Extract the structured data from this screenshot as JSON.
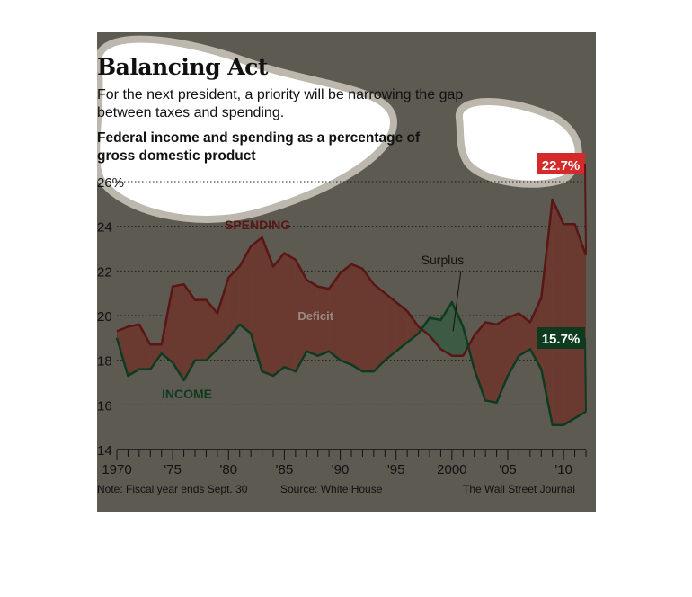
{
  "title": "Balancing Act",
  "subtitle": "For the next president, a priority will be narrowing the gap between taxes and spending.",
  "chart_heading": "Federal income and spending as a percentage of gross domestic product",
  "note": "Note: Fiscal year ends Sept. 30",
  "source": "Source: White House",
  "publisher": "The Wall Street Journal",
  "colors": {
    "background": "#5d5a52",
    "spending": "#5a1515",
    "income": "#0e3a20",
    "deficit_fill": "#6a3a30",
    "surplus_fill": "#3d5a45",
    "spending_badge": "#d42a2a",
    "income_badge": "#0e3a1e"
  },
  "chart_data": {
    "type": "line",
    "title": "Federal income and spending as a percentage of gross domestic product",
    "xlim": [
      1970,
      2012
    ],
    "ylim": [
      14,
      26
    ],
    "y_ticks": [
      14,
      16,
      18,
      20,
      22,
      24,
      26
    ],
    "y_tick_labels": [
      "14",
      "16",
      "18",
      "20",
      "22",
      "24",
      "26%"
    ],
    "x_ticks": [
      1970,
      1975,
      1980,
      1985,
      1990,
      1995,
      2000,
      2005,
      2010
    ],
    "x_tick_labels": [
      "1970",
      "'75",
      "'80",
      "'85",
      "'90",
      "'95",
      "2000",
      "'05",
      "'10"
    ],
    "grid": "horizontal dotted",
    "series": [
      {
        "name": "SPENDING",
        "x": [
          1970,
          1971,
          1972,
          1973,
          1974,
          1975,
          1976,
          1977,
          1978,
          1979,
          1980,
          1981,
          1982,
          1983,
          1984,
          1985,
          1986,
          1987,
          1988,
          1989,
          1990,
          1991,
          1992,
          1993,
          1994,
          1995,
          1996,
          1997,
          1998,
          1999,
          2000,
          2001,
          2002,
          2003,
          2004,
          2005,
          2006,
          2007,
          2008,
          2009,
          2010,
          2011,
          2012
        ],
        "values": [
          19.3,
          19.5,
          19.6,
          18.7,
          18.7,
          21.3,
          21.4,
          20.7,
          20.7,
          20.1,
          21.7,
          22.2,
          23.1,
          23.5,
          22.2,
          22.8,
          22.5,
          21.6,
          21.3,
          21.2,
          21.9,
          22.3,
          22.1,
          21.4,
          21.0,
          20.6,
          20.2,
          19.5,
          19.1,
          18.5,
          18.2,
          18.2,
          19.1,
          19.7,
          19.6,
          19.9,
          20.1,
          19.7,
          20.8,
          25.2,
          24.1,
          24.1,
          22.7
        ]
      },
      {
        "name": "INCOME",
        "x": [
          1970,
          1971,
          1972,
          1973,
          1974,
          1975,
          1976,
          1977,
          1978,
          1979,
          1980,
          1981,
          1982,
          1983,
          1984,
          1985,
          1986,
          1987,
          1988,
          1989,
          1990,
          1991,
          1992,
          1993,
          1994,
          1995,
          1996,
          1997,
          1998,
          1999,
          2000,
          2001,
          2002,
          2003,
          2004,
          2005,
          2006,
          2007,
          2008,
          2009,
          2010,
          2011,
          2012
        ],
        "values": [
          19.0,
          17.3,
          17.6,
          17.6,
          18.3,
          17.9,
          17.1,
          18.0,
          18.0,
          18.5,
          19.0,
          19.6,
          19.2,
          17.5,
          17.3,
          17.7,
          17.5,
          18.4,
          18.2,
          18.4,
          18.0,
          17.8,
          17.5,
          17.5,
          18.0,
          18.4,
          18.8,
          19.2,
          19.9,
          19.8,
          20.6,
          19.5,
          17.6,
          16.2,
          16.1,
          17.3,
          18.2,
          18.5,
          17.6,
          15.1,
          15.1,
          15.4,
          15.7
        ]
      }
    ],
    "series_labels": [
      "SPENDING",
      "INCOME"
    ],
    "annotations": [
      {
        "text": "Deficit",
        "x": 1987.8,
        "y": 20.0
      },
      {
        "text": "Surplus",
        "x": 1999,
        "y": 22.3
      }
    ],
    "end_labels": [
      {
        "text": "22.7%",
        "series": "SPENDING"
      },
      {
        "text": "15.7%",
        "series": "INCOME"
      }
    ]
  }
}
